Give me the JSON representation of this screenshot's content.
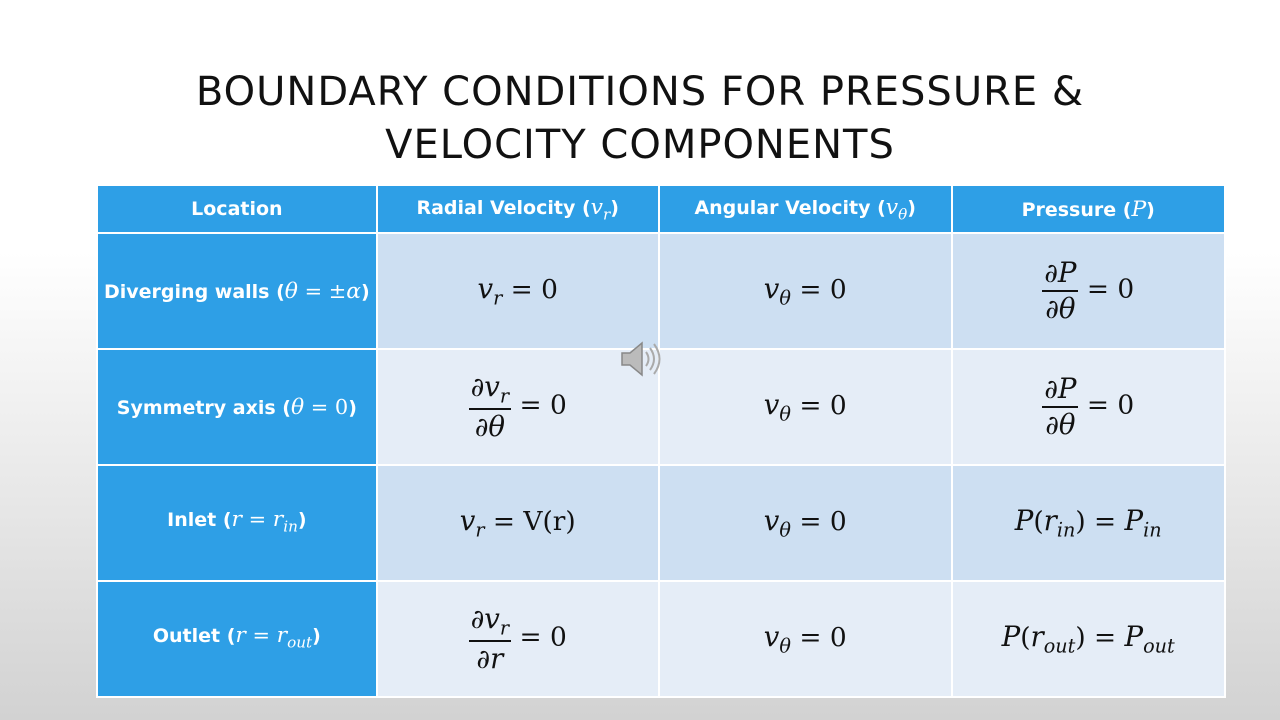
{
  "title": "BOUNDARY CONDITIONS FOR PRESSURE & VELOCITY COMPONENTS",
  "table": {
    "header": [
      [
        {
          "text": "Location"
        }
      ],
      [
        {
          "text": "Radial Velocity ("
        },
        {
          "math": "v"
        },
        {
          "sub": "r"
        },
        {
          "text": ")"
        }
      ],
      [
        {
          "text": "Angular Velocity ("
        },
        {
          "math": "v"
        },
        {
          "sub": "θ"
        },
        {
          "text": ")"
        }
      ],
      [
        {
          "text": "Pressure ("
        },
        {
          "math": "P"
        },
        {
          "text": ")"
        }
      ]
    ],
    "rows": [
      [
        [
          {
            "text": "Diverging walls ("
          },
          {
            "math": "θ"
          },
          {
            "op": " = ±"
          },
          {
            "math": "α"
          },
          {
            "text": ")"
          }
        ],
        [
          {
            "math": "v"
          },
          {
            "sub": "r"
          },
          {
            "op": " = 0"
          }
        ],
        [
          {
            "math": "v"
          },
          {
            "sub": "θ"
          },
          {
            "op": " = 0"
          }
        ],
        [
          {
            "num": [
              {
                "op": "∂"
              },
              {
                "math": "P"
              }
            ],
            "den": [
              {
                "op": "∂"
              },
              {
                "math": "θ"
              }
            ]
          },
          {
            "op": " = 0"
          }
        ]
      ],
      [
        [
          {
            "text": "Symmetry axis ("
          },
          {
            "math": "θ"
          },
          {
            "op": " = 0"
          },
          {
            "text": ")"
          }
        ],
        [
          {
            "num": [
              {
                "op": "∂"
              },
              {
                "math": "v"
              },
              {
                "sub": "r"
              }
            ],
            "den": [
              {
                "op": "∂"
              },
              {
                "math": "θ"
              }
            ]
          },
          {
            "op": " = 0"
          }
        ],
        [
          {
            "math": "v"
          },
          {
            "sub": "θ"
          },
          {
            "op": " = 0"
          }
        ],
        [
          {
            "num": [
              {
                "op": "∂"
              },
              {
                "math": "P"
              }
            ],
            "den": [
              {
                "op": "∂"
              },
              {
                "math": "θ"
              }
            ]
          },
          {
            "op": " = 0"
          }
        ]
      ],
      [
        [
          {
            "text": "Inlet ("
          },
          {
            "math": "r"
          },
          {
            "op": " = "
          },
          {
            "math": "r"
          },
          {
            "sub": "in"
          },
          {
            "text": ")"
          }
        ],
        [
          {
            "math": "v"
          },
          {
            "sub": "r"
          },
          {
            "op": " = V(r)"
          }
        ],
        [
          {
            "math": "v"
          },
          {
            "sub": "θ"
          },
          {
            "op": " = 0"
          }
        ],
        [
          {
            "math": "P"
          },
          {
            "op": "("
          },
          {
            "math": "r"
          },
          {
            "sub": "in"
          },
          {
            "op": ") = "
          },
          {
            "math": "P"
          },
          {
            "sub": "in"
          }
        ]
      ],
      [
        [
          {
            "text": "Outlet ("
          },
          {
            "math": "r"
          },
          {
            "op": " = "
          },
          {
            "math": "r"
          },
          {
            "sub": "out"
          },
          {
            "text": ")"
          }
        ],
        [
          {
            "num": [
              {
                "op": "∂"
              },
              {
                "math": "v"
              },
              {
                "sub": "r"
              }
            ],
            "den": [
              {
                "op": "∂"
              },
              {
                "math": "r"
              }
            ]
          },
          {
            "op": " = 0"
          }
        ],
        [
          {
            "math": "v"
          },
          {
            "sub": "θ"
          },
          {
            "op": " = 0"
          }
        ],
        [
          {
            "math": "P"
          },
          {
            "op": "("
          },
          {
            "math": "r"
          },
          {
            "sub": "out"
          },
          {
            "op": ") = "
          },
          {
            "math": "P"
          },
          {
            "sub": "out"
          }
        ]
      ]
    ]
  }
}
